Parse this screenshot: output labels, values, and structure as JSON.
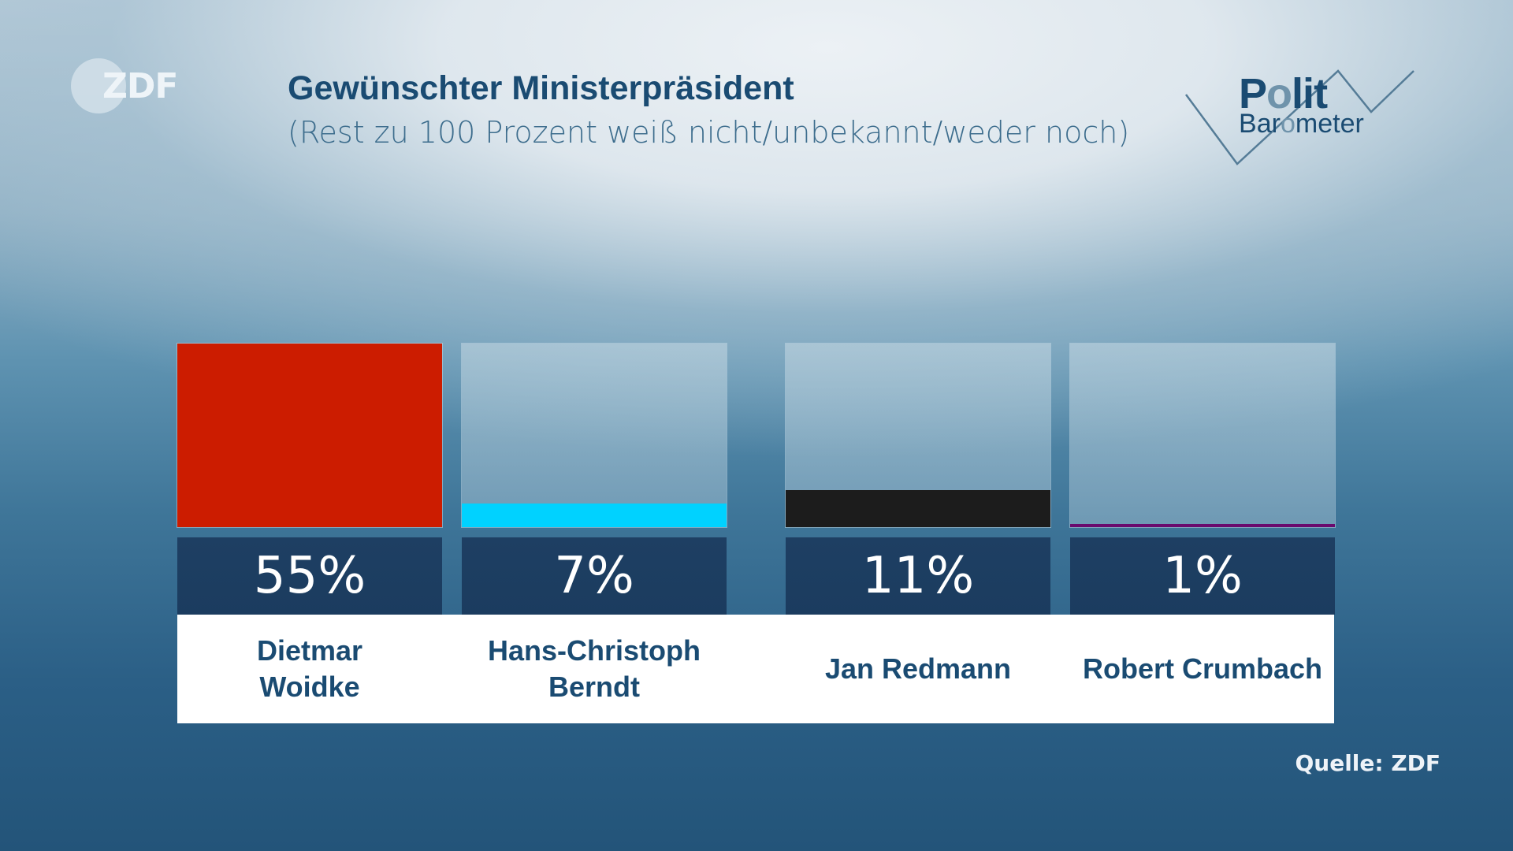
{
  "brand": {
    "broadcaster_logo": "ZDF",
    "show_logo_line1": "Polit",
    "show_logo_line2": "Barometer"
  },
  "header": {
    "title": "Gewünschter Ministerpräsident",
    "subtitle": "(Rest zu 100 Prozent weiß nicht/unbekannt/weder noch)"
  },
  "footer": {
    "source": "Quelle: ZDF"
  },
  "chart_data": {
    "type": "bar",
    "title": "Gewünschter Ministerpräsident",
    "subtitle": "(Rest zu 100 Prozent weiß nicht/unbekannt/weder noch)",
    "categories": [
      "Dietmar Woidke",
      "Hans-Christoph Berndt",
      "Jan Redmann",
      "Robert Crumbach"
    ],
    "category_lines": [
      [
        "Dietmar",
        "Woidke"
      ],
      [
        "Hans-Christoph",
        "Berndt"
      ],
      [
        "Jan Redmann"
      ],
      [
        "Robert Crumbach"
      ]
    ],
    "values": [
      55,
      7,
      11,
      1
    ],
    "value_labels": [
      "55%",
      "7%",
      "11%",
      "1%"
    ],
    "colors": [
      "#cc1c00",
      "#00d2ff",
      "#1c1c1c",
      "#6a0a6e"
    ],
    "unit": "%",
    "ylim": [
      0,
      55
    ],
    "xlabel": "",
    "ylabel": "",
    "grid": false,
    "legend": "none",
    "source": "Quelle: ZDF"
  }
}
